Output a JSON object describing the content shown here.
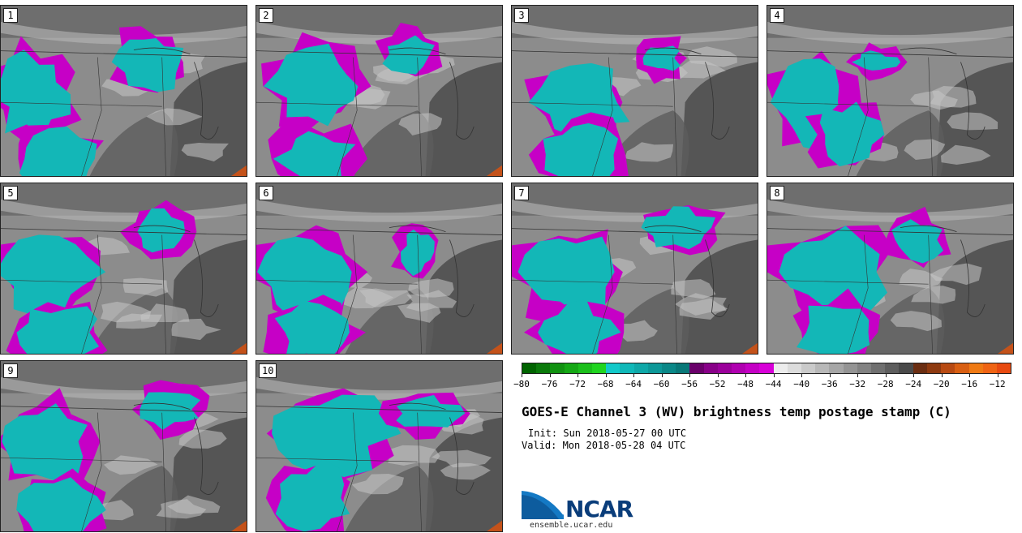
{
  "title": "GOES-E Channel 3 (WV) brightness temp postage stamp (C)",
  "init_text": "Init: Sun 2018-05-27 00 UTC",
  "valid_text": "Valid: Mon 2018-05-28 04 UTC",
  "logo_text": "NCAR",
  "site_text": "ensemble.ucar.edu",
  "panels": [
    "1",
    "2",
    "3",
    "4",
    "5",
    "6",
    "7",
    "8",
    "9",
    "10"
  ],
  "colorbar": {
    "tick_labels": [
      "−80",
      "−76",
      "−72",
      "−68",
      "−64",
      "−60",
      "−56",
      "−52",
      "−48",
      "−44",
      "−40",
      "−36",
      "−32",
      "−28",
      "−24",
      "−20",
      "−16",
      "−12"
    ],
    "min": -80,
    "max": -10,
    "bins": [
      {
        "from": -80,
        "color": "#006400"
      },
      {
        "from": -78,
        "color": "#0a7a0a"
      },
      {
        "from": -76,
        "color": "#119211"
      },
      {
        "from": -74,
        "color": "#15a815"
      },
      {
        "from": -72,
        "color": "#1bbf1b"
      },
      {
        "from": -70,
        "color": "#20d520"
      },
      {
        "from": -68,
        "color": "#12c9c9"
      },
      {
        "from": -66,
        "color": "#10b8b8"
      },
      {
        "from": -64,
        "color": "#0fa8a8"
      },
      {
        "from": -62,
        "color": "#0d9898"
      },
      {
        "from": -60,
        "color": "#0b8888"
      },
      {
        "from": -58,
        "color": "#097878"
      },
      {
        "from": -56,
        "color": "#6a006a"
      },
      {
        "from": -54,
        "color": "#880088"
      },
      {
        "from": -52,
        "color": "#9b009b"
      },
      {
        "from": -50,
        "color": "#b000b0"
      },
      {
        "from": -48,
        "color": "#c400c4"
      },
      {
        "from": -46,
        "color": "#d800d8"
      },
      {
        "from": -44,
        "color": "#ececec"
      },
      {
        "from": -42,
        "color": "#dcdcdc"
      },
      {
        "from": -40,
        "color": "#cacaca"
      },
      {
        "from": -38,
        "color": "#b8b8b8"
      },
      {
        "from": -36,
        "color": "#a6a6a6"
      },
      {
        "from": -34,
        "color": "#949494"
      },
      {
        "from": -32,
        "color": "#828282"
      },
      {
        "from": -30,
        "color": "#707070"
      },
      {
        "from": -28,
        "color": "#5e5e5e"
      },
      {
        "from": -26,
        "color": "#4a4a4a"
      },
      {
        "from": -24,
        "color": "#6b2e12"
      },
      {
        "from": -22,
        "color": "#8e3a10"
      },
      {
        "from": -20,
        "color": "#b84a12"
      },
      {
        "from": -18,
        "color": "#d95f12"
      },
      {
        "from": -16,
        "color": "#f07a14"
      },
      {
        "from": -14,
        "color": "#f06414"
      },
      {
        "from": -12,
        "color": "#e84a10"
      }
    ]
  },
  "colors": {
    "cloud_top": "#13b7b7",
    "cloud_edge": "#c600c6",
    "warm": "#c4521a",
    "ice": "#e6e6e6"
  }
}
